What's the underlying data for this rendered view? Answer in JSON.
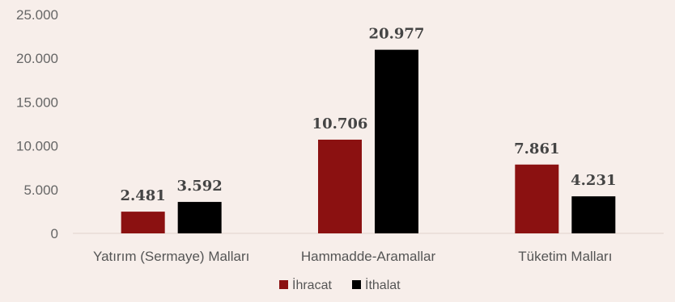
{
  "chart_data": {
    "type": "bar",
    "categories": [
      "Yatırım (Sermaye) Malları",
      "Hammadde-Aramallar",
      "Tüketim Malları"
    ],
    "series": [
      {
        "name": "İhracat",
        "values": [
          2481,
          10706,
          7861
        ],
        "labels": [
          "2.481",
          "10.706",
          "7.861"
        ],
        "color": "#8b1111"
      },
      {
        "name": "İthalat",
        "values": [
          3592,
          20977,
          4231
        ],
        "labels": [
          "3.592",
          "20.977",
          "4.231"
        ],
        "color": "#000000"
      }
    ],
    "ylim": [
      0,
      25000
    ],
    "yticks": [
      0,
      5000,
      10000,
      15000,
      20000,
      25000
    ],
    "ytick_labels": [
      "0",
      "5.000",
      "10.000",
      "15.000",
      "20.000",
      "25.000"
    ],
    "legend_position": "bottom-center",
    "grid": false
  }
}
